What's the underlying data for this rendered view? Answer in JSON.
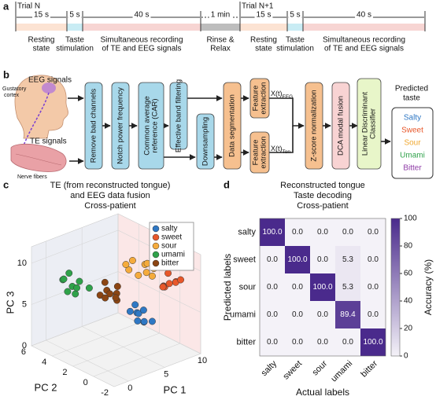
{
  "panel_labels": [
    "a",
    "b",
    "c",
    "d"
  ],
  "timeline": {
    "trials": [
      "Trial N",
      "Trial N+1"
    ],
    "segments": [
      {
        "duration": "15 s",
        "caption": [
          "Resting",
          "state"
        ],
        "color": "#fce3d3"
      },
      {
        "duration": "5 s",
        "caption": [
          "Taste",
          "stimulation"
        ],
        "color": "#c9ecf4"
      },
      {
        "duration": "40 s",
        "caption": [
          "Simultaneous recording",
          "of TE and EEG signals"
        ],
        "color": "#f7d5d3"
      },
      {
        "duration": "1 min",
        "caption": [
          "Rinse &",
          "Relax"
        ],
        "color": "#bdbdbd"
      },
      {
        "duration": "15 s",
        "caption": [
          "Resting",
          "state"
        ],
        "color": "#fce3d3"
      },
      {
        "duration": "5 s",
        "caption": [
          "Taste",
          "stimulation"
        ],
        "color": "#c9ecf4"
      },
      {
        "duration": "40 s",
        "caption": [
          "Simultaneous recording",
          "of TE and EEG signals"
        ],
        "color": "#f7d5d3"
      }
    ]
  },
  "pipeline": {
    "inputs": {
      "eeg": "EEG signals",
      "cortex": [
        "Gustatory",
        "cortex"
      ],
      "te": "TE signals",
      "nerve": "Nerve fibers"
    },
    "stages": [
      {
        "lines": [
          "Remove bad channels"
        ],
        "color": "#a8d8ea"
      },
      {
        "lines": [
          "Notch power frequency"
        ],
        "color": "#a8d8ea"
      },
      {
        "lines": [
          "Common average",
          "reference (CAR)"
        ],
        "color": "#a8d8ea"
      },
      {
        "lines": [
          "Effective band filtering"
        ],
        "color": "#a8d8ea"
      },
      {
        "lines": [
          "Downsampling"
        ],
        "color": "#a8d8ea"
      },
      {
        "lines": [
          "Data segmentation"
        ],
        "color": "#f6c08f"
      }
    ],
    "features": [
      {
        "lines": [
          "Feature",
          "extraction"
        ],
        "color": "#f6c08f",
        "var": {
          "base": "X(t)",
          "sub": "EEG"
        }
      },
      {
        "lines": [
          "Feature",
          "extraction"
        ],
        "color": "#f6c08f",
        "var": {
          "base": "X(t)",
          "sub": "Ton"
        }
      }
    ],
    "classifier_stages": [
      {
        "lines": [
          "Z-score normalization"
        ],
        "color": "#f6c08f"
      },
      {
        "lines": [
          "DCA modal fusion"
        ],
        "color": "#f8d3d3"
      },
      {
        "lines": [
          "Linear Discriminant",
          "Classifier"
        ],
        "color": "#e8f6c9"
      }
    ],
    "output": {
      "title": [
        "Predicted",
        "taste"
      ],
      "tastes": [
        {
          "name": "Salty",
          "color": "#2f78c4"
        },
        {
          "name": "Sweet",
          "color": "#e8572a"
        },
        {
          "name": "Sour",
          "color": "#f0a830"
        },
        {
          "name": "Umami",
          "color": "#2fa24a"
        },
        {
          "name": "Bitter",
          "color": "#8e3aa6"
        }
      ]
    }
  },
  "chart_data": [
    {
      "type": "scatter3d",
      "title": [
        "TE (from reconstructed tongue)",
        "and EEG data fusion",
        "Cross-patient"
      ],
      "xlabel": "PC 1",
      "ylabel": "PC 2",
      "zlabel": "PC 3",
      "xlim": [
        -2,
        10
      ],
      "ylim": [
        -2,
        6
      ],
      "zlim": [
        0,
        12
      ],
      "xticks": [
        0,
        5,
        10
      ],
      "yticks": [
        6,
        4,
        2,
        0,
        -2
      ],
      "zticks": [
        0,
        5,
        10
      ],
      "legend": "upper right",
      "series": [
        {
          "name": "salty",
          "color": "#2f78c4",
          "x": [
            2.6,
            3.4,
            3.0,
            3.8,
            2.4,
            3.2,
            4.0,
            2.8,
            3.6
          ],
          "y": [
            -1.0,
            -0.6,
            -1.4,
            -0.8,
            -1.2,
            -0.4,
            -1.5,
            -0.2,
            -1.0
          ],
          "z": [
            6.8,
            6.2,
            5.8,
            6.6,
            6.0,
            7.2,
            5.6,
            6.4,
            5.4
          ]
        },
        {
          "name": "sweet",
          "color": "#e8572a",
          "x": [
            8.0,
            9.0,
            8.6,
            9.4,
            7.8,
            8.8,
            9.8,
            8.2,
            9.2
          ],
          "y": [
            0.2,
            -0.3,
            0.5,
            0.0,
            -0.5,
            0.8,
            -0.2,
            0.4,
            0.6
          ],
          "z": [
            7.5,
            8.0,
            7.0,
            7.6,
            8.3,
            6.8,
            7.9,
            7.2,
            8.4
          ]
        },
        {
          "name": "sour",
          "color": "#f5ab3c",
          "x": [
            7.0,
            8.0,
            7.5,
            6.8,
            8.6,
            7.8,
            7.2,
            8.3,
            6.5
          ],
          "y": [
            2.5,
            2.0,
            1.5,
            1.8,
            2.2,
            1.0,
            3.0,
            1.5,
            2.8
          ],
          "z": [
            9.5,
            9.0,
            8.5,
            8.2,
            8.8,
            9.2,
            8.0,
            7.8,
            9.0
          ]
        },
        {
          "name": "umami",
          "color": "#2fa24a",
          "x": [
            0.2,
            0.8,
            1.5,
            0.5,
            1.2,
            2.0,
            0.9,
            1.7,
            0.0
          ],
          "y": [
            4.5,
            4.0,
            3.8,
            3.5,
            4.6,
            3.2,
            4.9,
            4.2,
            3.9
          ],
          "z": [
            8.2,
            7.5,
            8.0,
            7.0,
            8.6,
            7.4,
            7.8,
            6.9,
            7.2
          ]
        },
        {
          "name": "bitter",
          "color": "#8b4513",
          "x": [
            3.0,
            3.8,
            2.5,
            4.2,
            3.4,
            2.8,
            4.0,
            3.6,
            2.2
          ],
          "y": [
            2.2,
            1.8,
            2.5,
            2.0,
            1.5,
            1.2,
            2.6,
            2.8,
            1.8
          ],
          "z": [
            7.4,
            7.0,
            6.8,
            7.6,
            6.5,
            7.2,
            6.4,
            7.8,
            7.0
          ]
        }
      ]
    },
    {
      "type": "heatmap",
      "title": [
        "Reconstructed tongue",
        "Taste decoding",
        "Cross-patient"
      ],
      "xlabel": "Actual labels",
      "ylabel": "Predicted labels",
      "x_categories": [
        "salty",
        "sweet",
        "sour",
        "umami",
        "bitter"
      ],
      "y_categories": [
        "salty",
        "sweet",
        "sour",
        "umami",
        "bitter"
      ],
      "values": [
        [
          100,
          0,
          0,
          0,
          0
        ],
        [
          0,
          100,
          0,
          5.3,
          0
        ],
        [
          0,
          0,
          100,
          5.3,
          0
        ],
        [
          0,
          0,
          0,
          89.4,
          0
        ],
        [
          0,
          0,
          0,
          0,
          100
        ]
      ],
      "value_labels": [
        [
          "100.0",
          "0.0",
          "0.0",
          "0.0",
          "0.0"
        ],
        [
          "0.0",
          "100.0",
          "0.0",
          "5.3",
          "0.0"
        ],
        [
          "0.0",
          "0.0",
          "100.0",
          "5.3",
          "0.0"
        ],
        [
          "0.0",
          "0.0",
          "0.0",
          "89.4",
          "0.0"
        ],
        [
          "0.0",
          "0.0",
          "0.0",
          "0.0",
          "100.0"
        ]
      ],
      "zlim": [
        0,
        100
      ],
      "colorbar_ticks": [
        0,
        20,
        40,
        60,
        80,
        100
      ],
      "colorbar_label": "Accuracy (%)",
      "cmap": [
        "#f4f2f8",
        "#4a2a8c"
      ]
    }
  ]
}
